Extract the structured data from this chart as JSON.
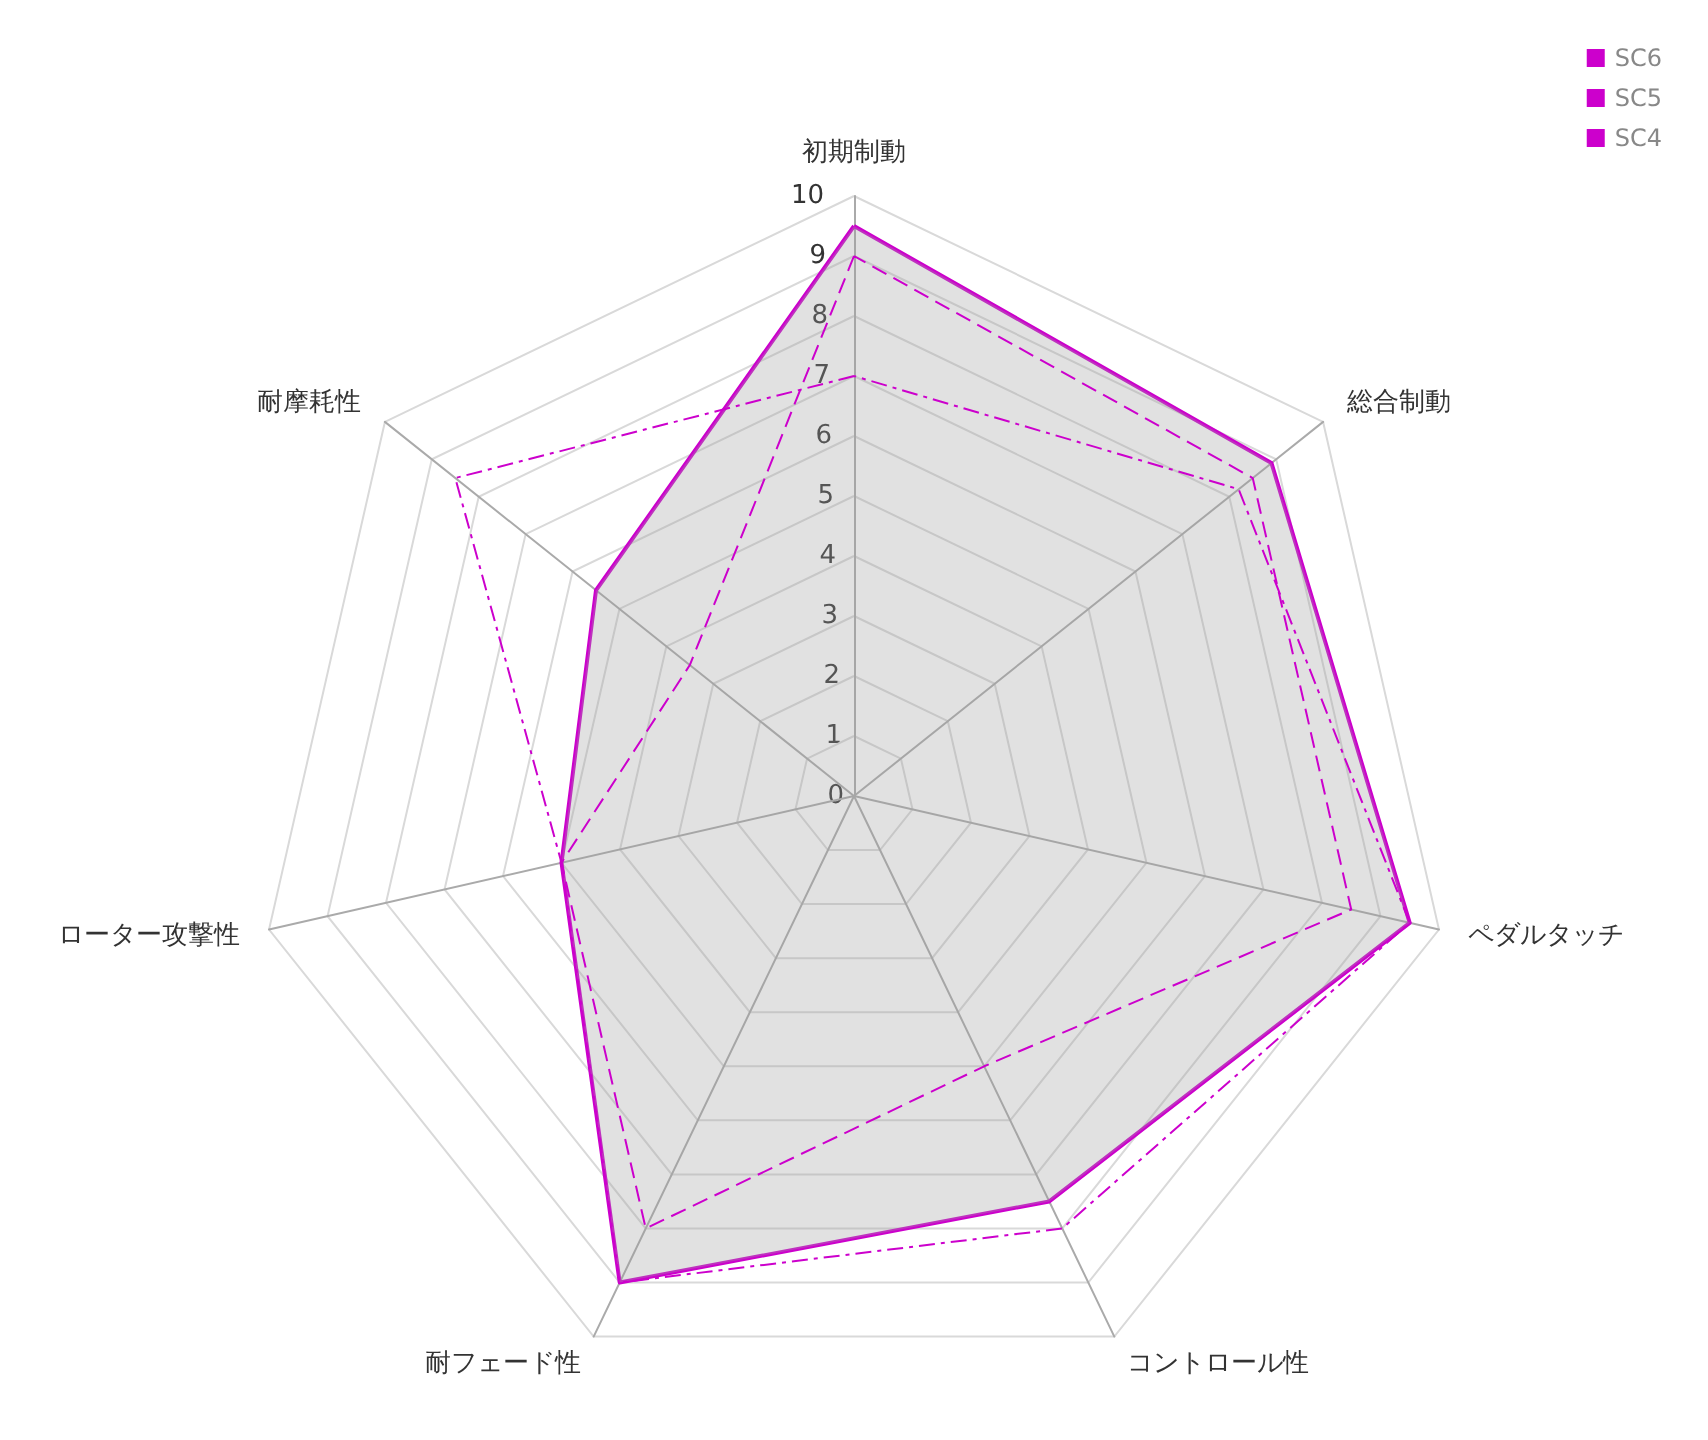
{
  "chart_data": {
    "type": "radar",
    "categories": [
      "初期制動",
      "総合制動",
      "ペダルタッチ",
      "コントロール性",
      "耐フェード性",
      "ローター攻撃性",
      "耐摩耗性"
    ],
    "ylim": [
      0,
      10
    ],
    "yticks": [
      0,
      1,
      2,
      3,
      4,
      5,
      6,
      7,
      8,
      9,
      10
    ],
    "grid": true,
    "legend": "top right",
    "marker": "none",
    "series": [
      {
        "name": "SC6",
        "color": "#cc00cc",
        "line_style": "solid",
        "values": [
          9.5,
          8.9,
          9.5,
          7.5,
          9,
          5,
          5.5
        ]
      },
      {
        "name": "SC5",
        "color": "#cc00cc",
        "line_style": "dashed",
        "values": [
          9,
          8.5,
          8.5,
          5,
          8,
          5,
          3.5
        ]
      },
      {
        "name": "SC4",
        "color": "#cc00cc",
        "line_style": "dotted",
        "values": [
          7,
          8.2,
          9.5,
          8,
          9,
          5,
          8.5
        ]
      }
    ]
  }
}
